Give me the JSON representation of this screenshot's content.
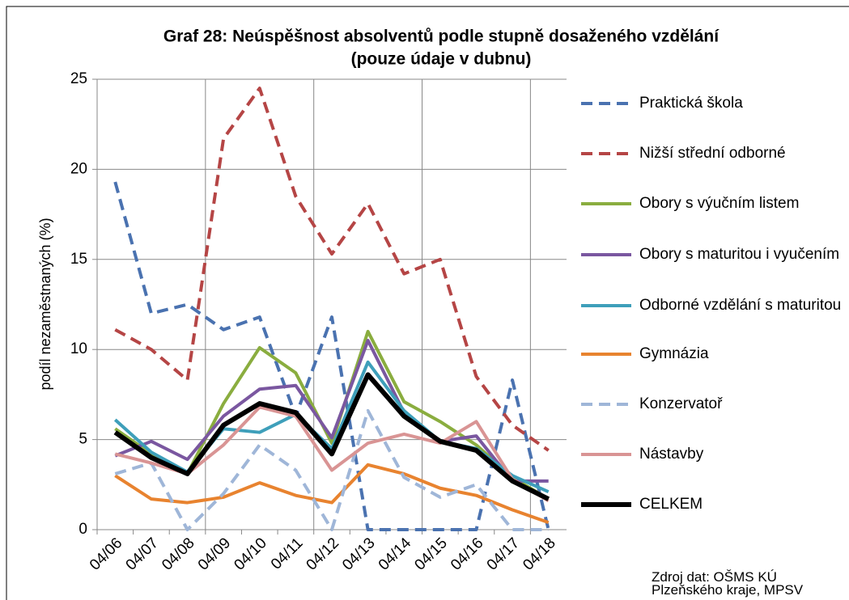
{
  "chart_data": {
    "type": "line",
    "title": "Graf 28: Neúspěšnost absolventů podle stupně dosaženého vzdělání",
    "subtitle": "(pouze údaje v dubnu)",
    "y_label": "podíl nezaměstnaných (%)",
    "source": [
      "Zdroj dat: OŠMS KÚ",
      "Plzeňského kraje, MPSV"
    ],
    "categories": [
      "04/06",
      "04/07",
      "04/08",
      "04/09",
      "04/10",
      "04/11",
      "04/12",
      "04/13",
      "04/14",
      "04/15",
      "04/16",
      "04/17",
      "04/18"
    ],
    "ylim": [
      0,
      25
    ],
    "yticks": [
      0,
      5,
      10,
      15,
      20,
      25
    ],
    "grid": true,
    "legend": "right",
    "series": [
      {
        "name": "Praktická škola",
        "color": "#4a72b0",
        "style": "dashed",
        "values": [
          19.3,
          12.0,
          12.5,
          11.1,
          11.8,
          6.3,
          11.8,
          0,
          0,
          0,
          0,
          8.3,
          0
        ]
      },
      {
        "name": "Nižší střední odborné",
        "color": "#b54545",
        "style": "dashed",
        "values": [
          11.1,
          10.0,
          8.3,
          21.7,
          24.5,
          18.5,
          15.3,
          18.1,
          14.2,
          15.0,
          8.5,
          5.8,
          4.4
        ]
      },
      {
        "name": "Obory s výučním listem",
        "color": "#8aad3f",
        "style": "solid",
        "values": [
          5.6,
          4.2,
          3.1,
          7.0,
          10.1,
          8.7,
          4.8,
          11.0,
          7.1,
          6.0,
          4.7,
          2.9,
          1.7
        ]
      },
      {
        "name": "Obory s maturitou i vyučením",
        "color": "#7a57a0",
        "style": "solid",
        "values": [
          4.1,
          4.9,
          3.9,
          6.3,
          7.8,
          8.0,
          5.1,
          10.5,
          6.5,
          4.9,
          5.2,
          2.7,
          2.7
        ]
      },
      {
        "name": "Odborné vzdělání s maturitou",
        "color": "#3e9fba",
        "style": "solid",
        "values": [
          6.1,
          4.3,
          3.2,
          5.6,
          5.4,
          6.4,
          4.5,
          9.3,
          6.6,
          4.9,
          4.5,
          3.0,
          2.1
        ]
      },
      {
        "name": "Gymnázia",
        "color": "#e8832f",
        "style": "solid",
        "values": [
          3.0,
          1.7,
          1.5,
          1.8,
          2.6,
          1.9,
          1.5,
          3.6,
          3.1,
          2.3,
          1.9,
          1.1,
          0.4
        ]
      },
      {
        "name": "Konzervatoř",
        "color": "#9fb6d8",
        "style": "dashed",
        "values": [
          3.1,
          3.7,
          0,
          2.0,
          4.7,
          3.3,
          0,
          6.6,
          2.9,
          1.8,
          2.5,
          0,
          0
        ]
      },
      {
        "name": "Nástavby",
        "color": "#d99494",
        "style": "solid",
        "values": [
          4.2,
          3.7,
          3.1,
          4.7,
          6.8,
          6.3,
          3.3,
          4.8,
          5.3,
          4.8,
          6.0,
          2.8,
          1.6
        ]
      },
      {
        "name": "CELKEM",
        "color": "#000000",
        "style": "bold",
        "values": [
          5.4,
          4.0,
          3.1,
          5.8,
          7.0,
          6.5,
          4.2,
          8.6,
          6.3,
          4.9,
          4.4,
          2.7,
          1.7
        ]
      }
    ]
  }
}
